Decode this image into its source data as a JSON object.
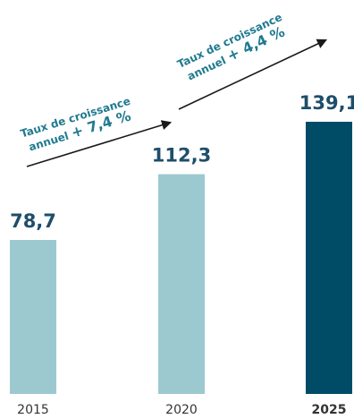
{
  "chart_data": {
    "type": "bar",
    "categories": [
      "2015",
      "2020",
      "2025"
    ],
    "values": [
      78.7,
      112.3,
      139.1
    ],
    "value_labels": [
      "78,7",
      "112,3",
      "139,1"
    ],
    "highlighted_category": "2025",
    "annotations": [
      {
        "line1": "Taux de croissance",
        "line2_prefix": "annuel ",
        "line2_value": "+ 7,4 %",
        "from": "2015",
        "to": "2020"
      },
      {
        "line1": "Taux de croissance",
        "line2_prefix": "annuel ",
        "line2_value": "+ 4,4 %",
        "from": "2020",
        "to": "2025"
      }
    ],
    "colors": {
      "bar": "#9cc9d0",
      "highlight_bar": "#004b66",
      "value_text": "#1d4e6b",
      "annotation_text": "#1f7a8f",
      "arrow": "#1a1a1a",
      "category_text": "#333333"
    },
    "title": "",
    "xlabel": "",
    "ylabel": "",
    "grid": false,
    "legend": "none"
  }
}
